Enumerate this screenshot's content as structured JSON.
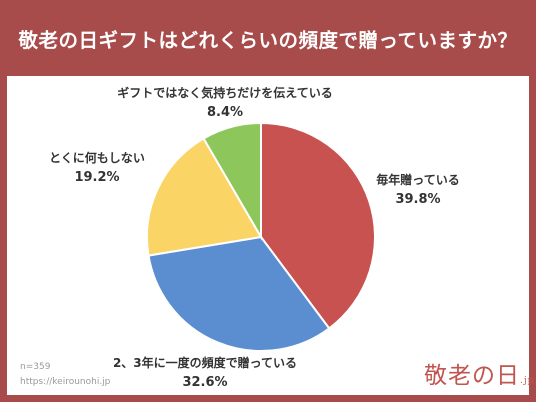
{
  "header": {
    "title": "敬老の日ギフトはどれくらいの頻度で贈っていますか？"
  },
  "chart_data": {
    "type": "pie",
    "title": "敬老の日ギフトはどれくらいの頻度で贈っていますか？",
    "start_angle_deg": 0,
    "direction": "clockwise",
    "slices": [
      {
        "label": "毎年贈っている",
        "value": 39.8,
        "display": "39.8%",
        "color": "#c8524f"
      },
      {
        "label": "2、3年に一度の頻度で贈っている",
        "value": 32.6,
        "display": "32.6%",
        "color": "#5a8ed1"
      },
      {
        "label": "とくに何もしない",
        "value": 19.2,
        "display": "19.2%",
        "color": "#fad465"
      },
      {
        "label": "ギフトではなく気持ちだけを伝えている",
        "value": 8.4,
        "display": "8.4%",
        "color": "#8dc75c"
      }
    ]
  },
  "footer": {
    "sample": "n=359",
    "url": "https://keirounohi.jp"
  },
  "logo": {
    "text": "敬老の日",
    "suffix": ".jp"
  }
}
